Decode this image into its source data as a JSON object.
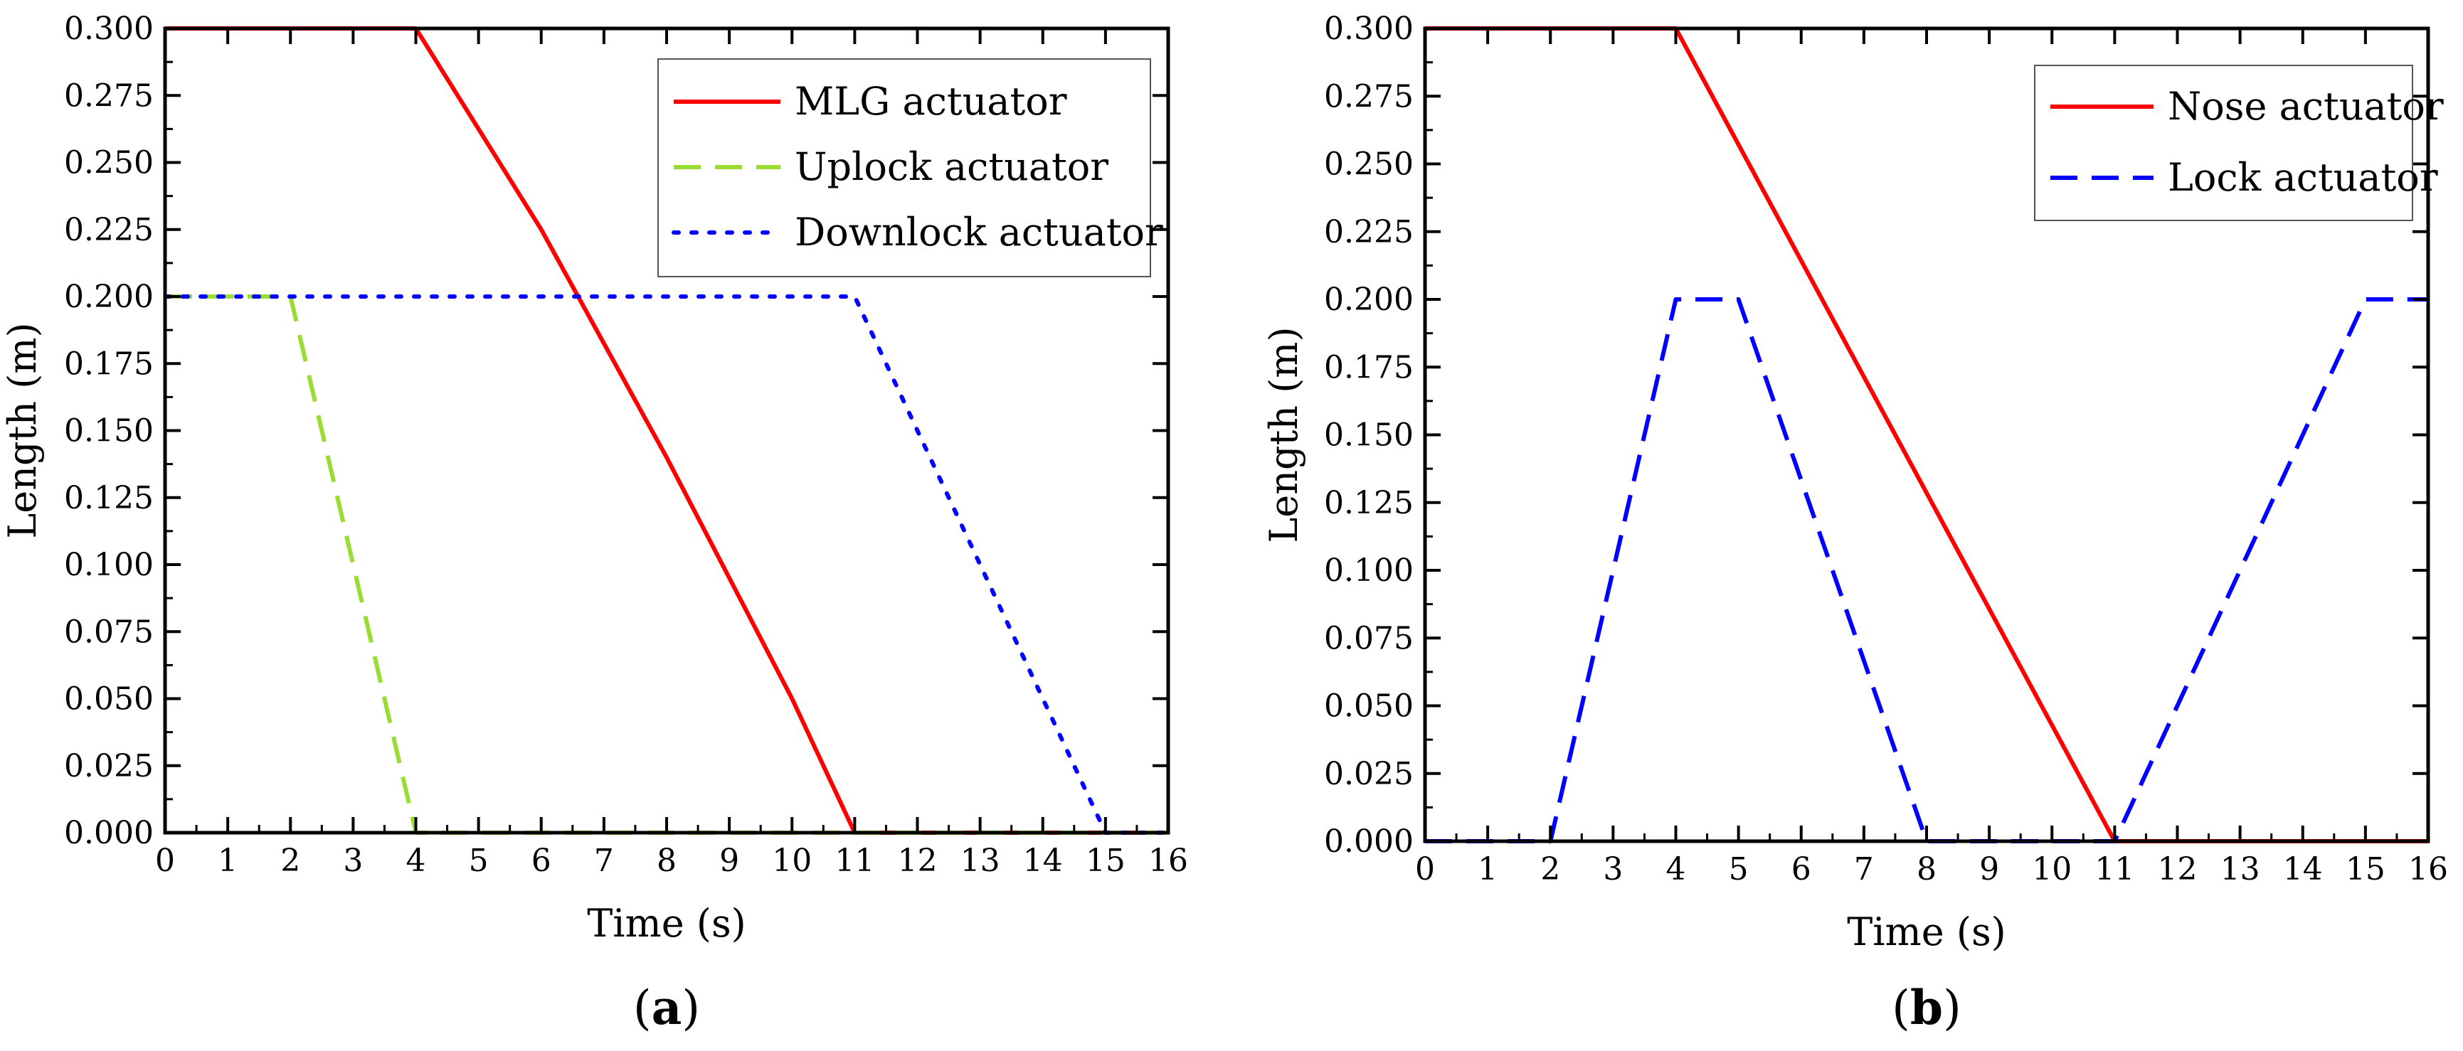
{
  "chart_data": [
    {
      "type": "line",
      "panel_label": "a",
      "xlabel": "Time (s)",
      "ylabel": "Length (m)",
      "xlim": [
        0,
        16
      ],
      "ylim": [
        0,
        0.3
      ],
      "xticks": [
        0,
        1,
        2,
        3,
        4,
        5,
        6,
        7,
        8,
        9,
        10,
        11,
        12,
        13,
        14,
        15,
        16
      ],
      "yticks": [
        0,
        0.025,
        0.05,
        0.075,
        0.1,
        0.125,
        0.15,
        0.175,
        0.2,
        0.225,
        0.25,
        0.275,
        0.3
      ],
      "ytick_labels": [
        "0.000",
        "0.025",
        "0.050",
        "0.075",
        "0.100",
        "0.125",
        "0.150",
        "0.175",
        "0.200",
        "0.225",
        "0.250",
        "0.275",
        "0.300"
      ],
      "legend_position": "top-right",
      "grid": false,
      "series": [
        {
          "name": "MLG actuator",
          "color": "#ff0000",
          "style": "solid",
          "x": [
            0,
            4,
            6,
            8,
            10,
            11,
            16
          ],
          "y": [
            0.3,
            0.3,
            0.225,
            0.14,
            0.05,
            0,
            0
          ]
        },
        {
          "name": "Uplock actuator",
          "color": "#99dd33",
          "style": "dashed",
          "x": [
            0,
            2,
            4,
            16
          ],
          "y": [
            0.2,
            0.2,
            0,
            0
          ]
        },
        {
          "name": "Downlock actuator",
          "color": "#0000ff",
          "style": "dotted",
          "x": [
            0,
            11,
            15,
            16
          ],
          "y": [
            0.2,
            0.2,
            0,
            0
          ]
        }
      ]
    },
    {
      "type": "line",
      "panel_label": "b",
      "xlabel": "Time (s)",
      "ylabel": "Length (m)",
      "xlim": [
        0,
        16
      ],
      "ylim": [
        0,
        0.3
      ],
      "xticks": [
        0,
        1,
        2,
        3,
        4,
        5,
        6,
        7,
        8,
        9,
        10,
        11,
        12,
        13,
        14,
        15,
        16
      ],
      "yticks": [
        0,
        0.025,
        0.05,
        0.075,
        0.1,
        0.125,
        0.15,
        0.175,
        0.2,
        0.225,
        0.25,
        0.275,
        0.3
      ],
      "ytick_labels": [
        "0.000",
        "0.025",
        "0.050",
        "0.075",
        "0.100",
        "0.125",
        "0.150",
        "0.175",
        "0.200",
        "0.225",
        "0.250",
        "0.275",
        "0.300"
      ],
      "legend_position": "top-right",
      "grid": false,
      "series": [
        {
          "name": "Nose actuator",
          "color": "#ff0000",
          "style": "solid",
          "x": [
            0,
            4,
            11,
            16
          ],
          "y": [
            0.3,
            0.3,
            0,
            0
          ]
        },
        {
          "name": "Lock actuator",
          "color": "#0000ff",
          "style": "dashed",
          "x": [
            0,
            2,
            4,
            5,
            8,
            11,
            15,
            16
          ],
          "y": [
            0,
            0,
            0.2,
            0.2,
            0,
            0,
            0.2,
            0.2
          ]
        }
      ]
    }
  ]
}
